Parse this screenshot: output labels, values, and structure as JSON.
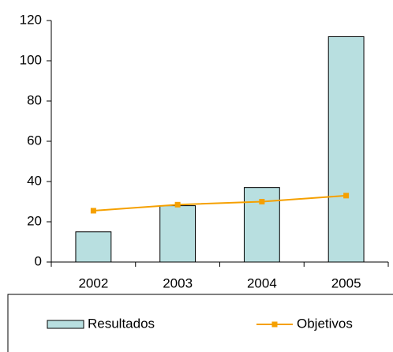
{
  "chart_data": {
    "type": "bar",
    "categories": [
      "2002",
      "2003",
      "2004",
      "2005"
    ],
    "series": [
      {
        "name": "Resultados",
        "type": "bar",
        "color": "#b8dfe0",
        "values": [
          15,
          28,
          37,
          112
        ]
      },
      {
        "name": "Objetivos",
        "type": "line",
        "color": "#f5a000",
        "values": [
          25.5,
          28.5,
          30,
          33
        ]
      }
    ],
    "ylim": [
      0,
      120
    ],
    "yticks": [
      0,
      20,
      40,
      60,
      80,
      100,
      120
    ],
    "grid": false,
    "legend": "bottom"
  }
}
